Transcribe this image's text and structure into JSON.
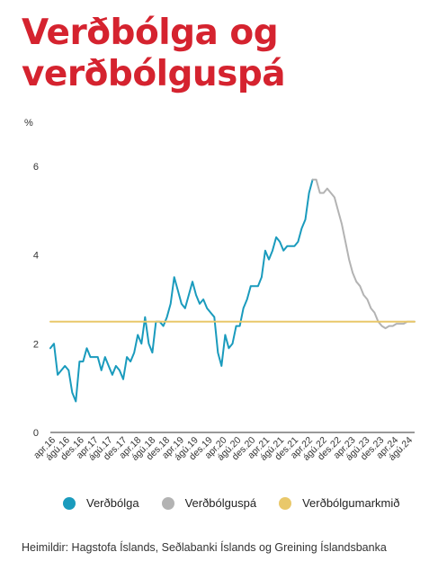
{
  "title_lines": [
    "Verðbólga og",
    "verðbólguspá"
  ],
  "source": "Heimildir: Hagstofa Íslands, Seðlabanki Íslands og Greining Íslandsbanka",
  "colors": {
    "title": "#d5232f",
    "inflation": "#1a9bbd",
    "forecast": "#b3b3b3",
    "target": "#e9c86a"
  },
  "chart_data": {
    "type": "line",
    "ylabel": "%",
    "ylim": [
      0,
      6
    ],
    "yticks": [
      "0",
      "2",
      "4",
      "6"
    ],
    "xlim": [
      0,
      100
    ],
    "x_tick_labels": [
      "apr.16",
      "ágú.16",
      "des.16",
      "apr.17",
      "ágú.17",
      "des.17",
      "apr.18",
      "ágú.18",
      "des.18",
      "apr.19",
      "ágú.19",
      "des.19",
      "apr.20",
      "ágú.20",
      "des.20",
      "apr.21",
      "ágú.21",
      "des.21",
      "apr.22",
      "ágú.22",
      "des.22",
      "apr.23",
      "ágú.23",
      "des.23",
      "apr.24",
      "ágú.24"
    ],
    "legend": [
      {
        "name": "Verðbólga",
        "color": "#1a9bbd"
      },
      {
        "name": "Verðbólguspá",
        "color": "#b3b3b3"
      },
      {
        "name": "Verðbólgumarkmið",
        "color": "#e9c86a"
      }
    ],
    "series": [
      {
        "name": "Verðbólga",
        "x": [
          0,
          1,
          2,
          3,
          4,
          5,
          6,
          7,
          8,
          9,
          10,
          11,
          12,
          13,
          14,
          15,
          16,
          17,
          18,
          19,
          20,
          21,
          22,
          23,
          24,
          25,
          26,
          27,
          28,
          29,
          30,
          31,
          32,
          33,
          34,
          35,
          36,
          37,
          38,
          39,
          40,
          41,
          42,
          43,
          44,
          45,
          46,
          47,
          48,
          49,
          50,
          51,
          52,
          53,
          54,
          55,
          56,
          57,
          58,
          59,
          60,
          61,
          62,
          63,
          64,
          65,
          66,
          67,
          68,
          69,
          70,
          71,
          72
        ],
        "y": [
          1.9,
          2.0,
          1.3,
          1.4,
          1.5,
          1.4,
          0.9,
          0.7,
          1.6,
          1.6,
          1.9,
          1.7,
          1.7,
          1.7,
          1.4,
          1.7,
          1.5,
          1.3,
          1.5,
          1.4,
          1.2,
          1.7,
          1.6,
          1.8,
          2.2,
          2.0,
          2.6,
          2.0,
          1.8,
          2.5,
          2.5,
          2.4,
          2.6,
          2.9,
          3.5,
          3.2,
          2.9,
          2.8,
          3.1,
          3.4,
          3.1,
          2.9,
          3.0,
          2.8,
          2.7,
          2.6,
          1.8,
          1.5,
          2.2,
          1.9,
          2.0,
          2.4,
          2.4,
          2.8,
          3.0,
          3.3,
          3.3,
          3.3,
          3.5,
          4.1,
          3.9,
          4.1,
          4.4,
          4.3,
          4.1,
          4.2,
          4.2,
          4.2,
          4.3,
          4.6,
          4.8,
          5.4,
          5.7
        ],
        "color": "#1a9bbd"
      },
      {
        "name": "Verðbólguspá",
        "x": [
          72,
          73,
          74,
          75,
          76,
          77,
          78,
          79,
          80,
          81,
          82,
          83,
          84,
          85,
          86,
          87,
          88,
          89,
          90,
          91,
          92,
          93,
          94,
          95,
          96,
          97,
          98,
          99,
          100
        ],
        "y": [
          5.7,
          5.7,
          5.4,
          5.4,
          5.5,
          5.4,
          5.3,
          5.0,
          4.7,
          4.3,
          3.9,
          3.6,
          3.4,
          3.3,
          3.1,
          3.0,
          2.8,
          2.7,
          2.5,
          2.4,
          2.35,
          2.4,
          2.4,
          2.45,
          2.45,
          2.45,
          2.5,
          2.5,
          2.5
        ],
        "color": "#b3b3b3"
      },
      {
        "name": "Verðbólgumarkmið",
        "x": [
          0,
          100
        ],
        "y": [
          2.5,
          2.5
        ],
        "color": "#e9c86a"
      }
    ]
  }
}
